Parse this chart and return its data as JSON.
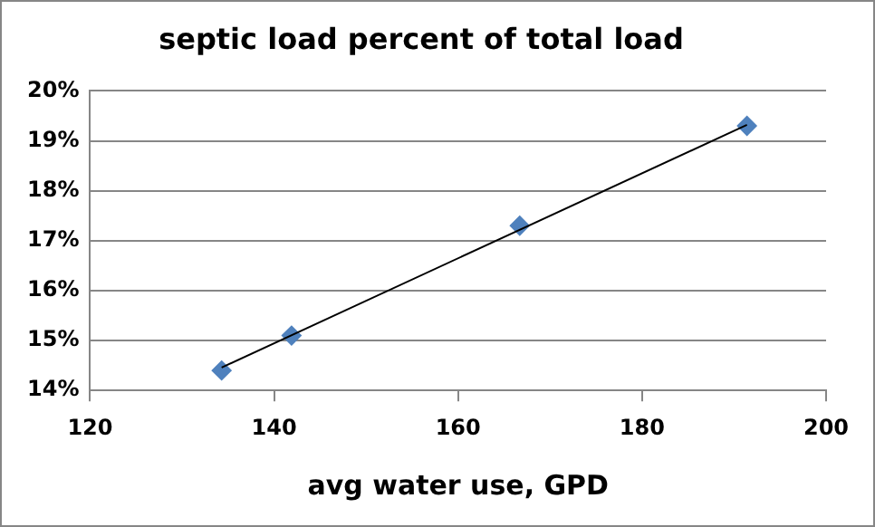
{
  "chart_data": {
    "type": "scatter",
    "title": "septic load percent of total load",
    "xlabel": "avg water use, GPD",
    "series": [
      {
        "color": "#4f81bd",
        "marker": "diamond",
        "x": [
          134.3,
          141.9,
          166.7,
          191.4
        ],
        "values": [
          14.4,
          15.1,
          17.3,
          19.3
        ]
      },
      {
        "type": "line",
        "color": "#000000",
        "marker": "none",
        "x": [
          134.3,
          191.4
        ],
        "values": [
          14.46,
          19.32
        ]
      }
    ],
    "xlim": [
      120,
      200
    ],
    "xticks": [
      120,
      140,
      160,
      180,
      200
    ],
    "ylim": [
      14,
      20
    ],
    "yticks": [
      {
        "value": 14,
        "label": "14%"
      },
      {
        "value": 15,
        "label": "15%"
      },
      {
        "value": 16,
        "label": "16%"
      },
      {
        "value": 17,
        "label": "17%"
      },
      {
        "value": 18,
        "label": "18%"
      },
      {
        "value": 19,
        "label": "19%"
      },
      {
        "value": 20,
        "label": "20%"
      }
    ],
    "grid": "y",
    "legend": false
  }
}
